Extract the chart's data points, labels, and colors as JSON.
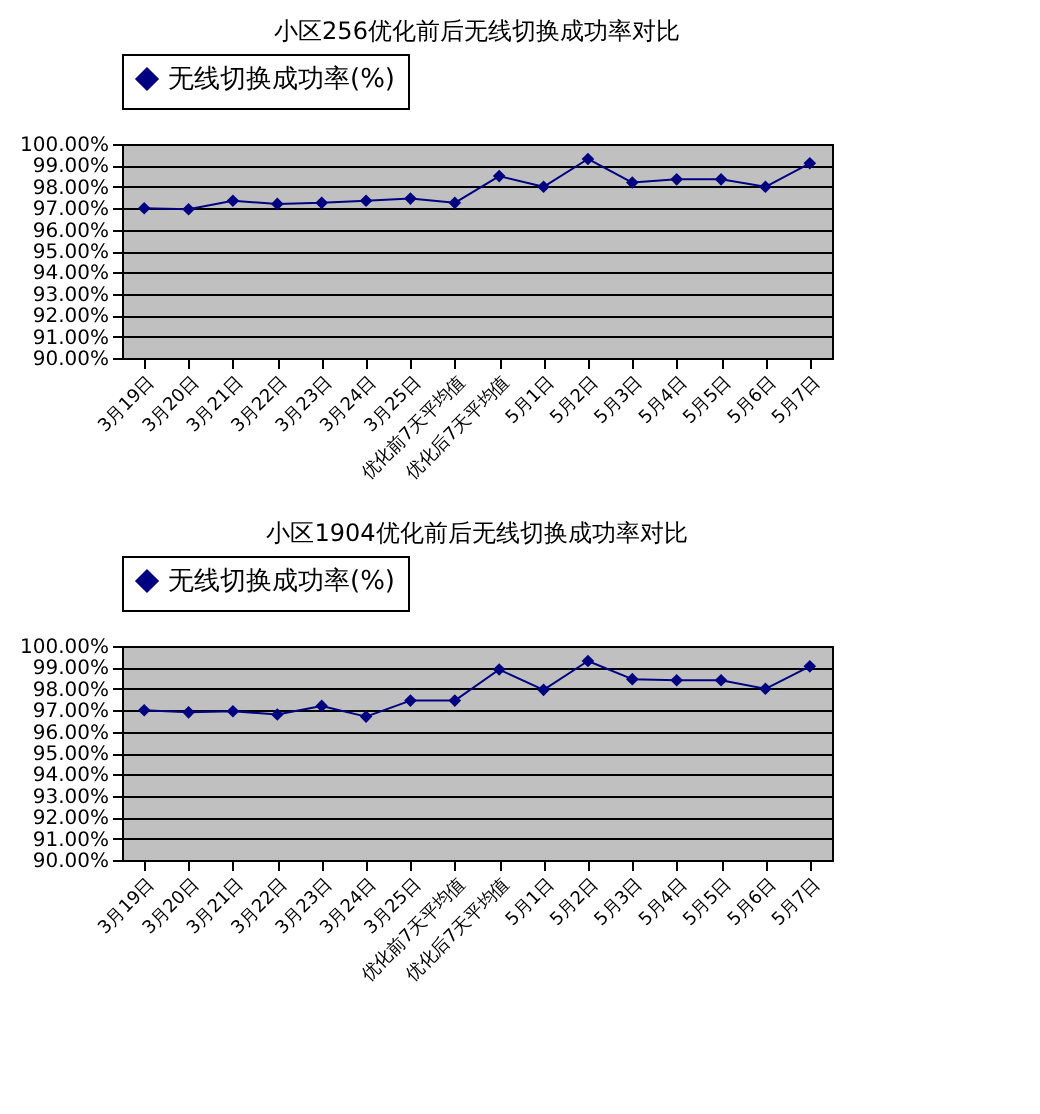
{
  "chart_data": [
    {
      "type": "line",
      "title": "小区256优化前后无线切换成功率对比",
      "categories": [
        "3月19日",
        "3月20日",
        "3月21日",
        "3月22日",
        "3月23日",
        "3月24日",
        "3月25日",
        "优化前7天平均值",
        "优化后7天平均值",
        "5月1日",
        "5月2日",
        "5月3日",
        "5月4日",
        "5月5日",
        "5月6日",
        "5月7日"
      ],
      "series": [
        {
          "name": "无线切换成功率(%)",
          "color": "#000080",
          "values": [
            97.0,
            96.95,
            97.35,
            97.2,
            97.25,
            97.35,
            97.45,
            97.25,
            98.5,
            98.0,
            99.3,
            98.2,
            98.35,
            98.35,
            98.0,
            99.1
          ]
        }
      ],
      "ylim": [
        90,
        100
      ],
      "yticks": [
        {
          "value": 90,
          "label": "90.00%"
        },
        {
          "value": 91,
          "label": "91.00%"
        },
        {
          "value": 92,
          "label": "92.00%"
        },
        {
          "value": 93,
          "label": "93.00%"
        },
        {
          "value": 94,
          "label": "94.00%"
        },
        {
          "value": 95,
          "label": "95.00%"
        },
        {
          "value": 96,
          "label": "96.00%"
        },
        {
          "value": 97,
          "label": "97.00%"
        },
        {
          "value": 98,
          "label": "98.00%"
        },
        {
          "value": 99,
          "label": "99.00%"
        },
        {
          "value": 100,
          "label": "100.00%"
        }
      ],
      "grid": "y",
      "legend": "top",
      "marker": "diamond",
      "line_style": "solid"
    },
    {
      "type": "line",
      "title": "小区1904优化前后无线切换成功率对比",
      "categories": [
        "3月19日",
        "3月20日",
        "3月21日",
        "3月22日",
        "3月23日",
        "3月24日",
        "3月25日",
        "优化前7天平均值",
        "优化后7天平均值",
        "5月1日",
        "5月2日",
        "5月3日",
        "5月4日",
        "5月5日",
        "5月6日",
        "5月7日"
      ],
      "series": [
        {
          "name": "无线切换成功率(%)",
          "color": "#000080",
          "values": [
            97.0,
            96.9,
            96.95,
            96.8,
            97.2,
            96.7,
            97.45,
            97.45,
            98.9,
            97.95,
            99.3,
            98.45,
            98.4,
            98.4,
            98.0,
            99.05
          ]
        }
      ],
      "ylim": [
        90,
        100
      ],
      "yticks": [
        {
          "value": 90,
          "label": "90.00%"
        },
        {
          "value": 91,
          "label": "91.00%"
        },
        {
          "value": 92,
          "label": "92.00%"
        },
        {
          "value": 93,
          "label": "93.00%"
        },
        {
          "value": 94,
          "label": "94.00%"
        },
        {
          "value": 95,
          "label": "95.00%"
        },
        {
          "value": 96,
          "label": "96.00%"
        },
        {
          "value": 97,
          "label": "97.00%"
        },
        {
          "value": 98,
          "label": "98.00%"
        },
        {
          "value": 99,
          "label": "99.00%"
        },
        {
          "value": 100,
          "label": "100.00%"
        }
      ],
      "grid": "y",
      "legend": "top",
      "marker": "diamond",
      "line_style": "solid"
    }
  ]
}
